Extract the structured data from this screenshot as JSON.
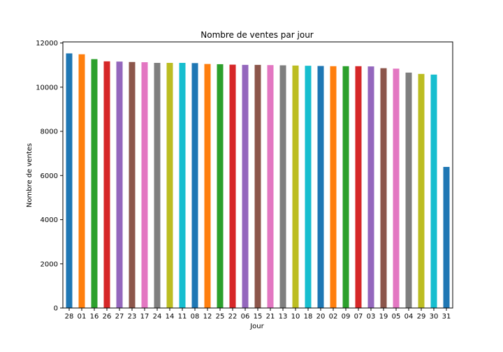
{
  "chart_data": {
    "type": "bar",
    "title": "Nombre de ventes par jour",
    "xlabel": "Jour",
    "ylabel": "Nombre de ventes",
    "ylim": [
      0,
      12050
    ],
    "yticks": [
      0,
      2000,
      4000,
      6000,
      8000,
      10000,
      12000
    ],
    "grid": false,
    "categories": [
      "28",
      "01",
      "16",
      "26",
      "27",
      "23",
      "17",
      "24",
      "14",
      "11",
      "08",
      "12",
      "25",
      "22",
      "06",
      "15",
      "21",
      "13",
      "10",
      "18",
      "20",
      "02",
      "09",
      "07",
      "03",
      "19",
      "05",
      "04",
      "29",
      "30",
      "31"
    ],
    "values": [
      11530,
      11490,
      11270,
      11170,
      11160,
      11140,
      11130,
      11100,
      11100,
      11100,
      11090,
      11050,
      11040,
      11020,
      11010,
      11010,
      11000,
      10990,
      10980,
      10970,
      10960,
      10950,
      10950,
      10950,
      10940,
      10860,
      10840,
      10660,
      10600,
      10570,
      6390
    ],
    "colors": [
      "#1f77b4",
      "#ff7f0e",
      "#2ca02c",
      "#d62728",
      "#9467bd",
      "#8c564b",
      "#e377c2",
      "#7f7f7f",
      "#bcbd22",
      "#17becf"
    ]
  }
}
